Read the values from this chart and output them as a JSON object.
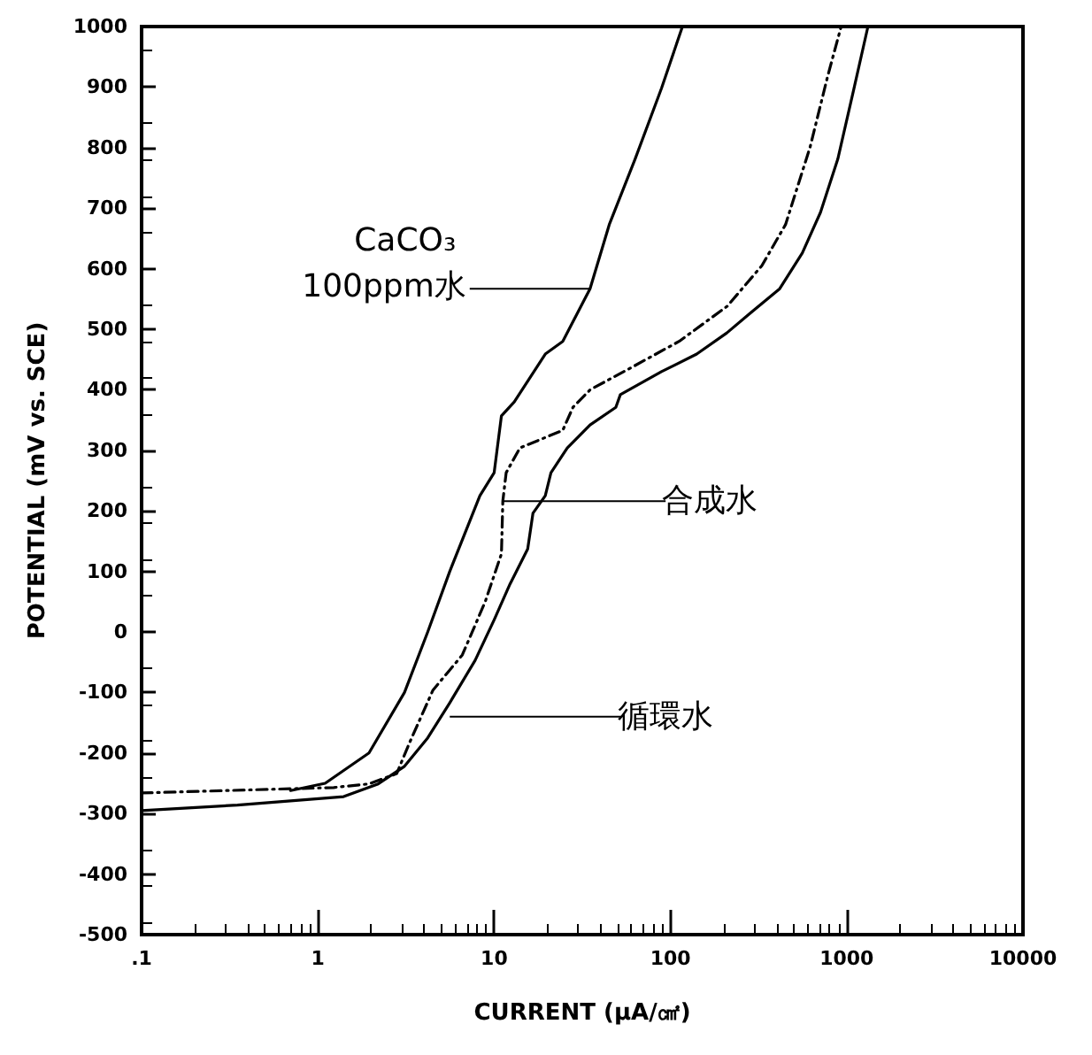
{
  "chart_data": {
    "type": "line",
    "xlabel": "CURRENT (μA/㎠)",
    "ylabel": "POTENTIAL (mV vs. SCE)",
    "log": "x",
    "grid": false,
    "marker": "none",
    "xlim": [
      0.1,
      10000
    ],
    "xticks": [
      {
        "value": 0.1,
        "label": ".1"
      },
      1,
      10,
      100,
      1000,
      10000
    ],
    "ylim": [
      -500,
      1000
    ],
    "yticks": [
      -500,
      -400,
      -300,
      -200,
      -100,
      0,
      100,
      200,
      300,
      400,
      500,
      600,
      700,
      800,
      900,
      1000
    ],
    "series": [
      {
        "color": "#000000",
        "line_style": "solid",
        "x": [
          0.7,
          1.1,
          1.95,
          3.1,
          4.2,
          5.6,
          8.3,
          10,
          11,
          13,
          19.5,
          24.5,
          35,
          45,
          63,
          89,
          117
        ],
        "values": [
          -262,
          -250,
          -200,
          -100,
          0,
          100,
          225,
          263,
          357,
          380,
          459,
          480,
          567,
          673,
          781,
          898,
          1000
        ]
      },
      {
        "color": "#000000",
        "line_style": "dashed",
        "x": [
          0.1,
          1.23,
          1.95,
          2.8,
          3.3,
          4.5,
          6.6,
          8.9,
          11,
          11.2,
          11.7,
          14,
          24.5,
          28,
          35,
          62,
          112,
          210,
          330,
          450,
          620,
          780,
          930
        ],
        "values": [
          -266,
          -257,
          -251,
          -234,
          -184,
          -96,
          -38,
          50,
          129,
          216,
          263,
          304,
          333,
          371,
          400,
          439,
          480,
          538,
          605,
          673,
          801,
          918,
          1000
        ]
      },
      {
        "color": "#000000",
        "line_style": "solid",
        "x": [
          0.1,
          0.35,
          1.4,
          2.2,
          3.1,
          4.2,
          5.6,
          7.8,
          10,
          12.3,
          15.5,
          16.6,
          19.5,
          21,
          26,
          35,
          49,
          52,
          89,
          141,
          209,
          282,
          417,
          560,
          710,
          890,
          1100,
          1320
        ],
        "values": [
          -295,
          -286,
          -272,
          -251,
          -222,
          -175,
          -117,
          -47,
          20,
          79,
          137,
          196,
          225,
          263,
          304,
          342,
          371,
          392,
          430,
          459,
          494,
          526,
          567,
          626,
          693,
          781,
          898,
          1000
        ]
      }
    ],
    "annotations": [
      {
        "text": "CaCO₃ 100ppm水",
        "x": 35,
        "y": 567
      },
      {
        "text": "合成水",
        "x": 11.2,
        "y": 216
      },
      {
        "text": "循環水",
        "x": 5.6,
        "y": -140
      }
    ]
  }
}
